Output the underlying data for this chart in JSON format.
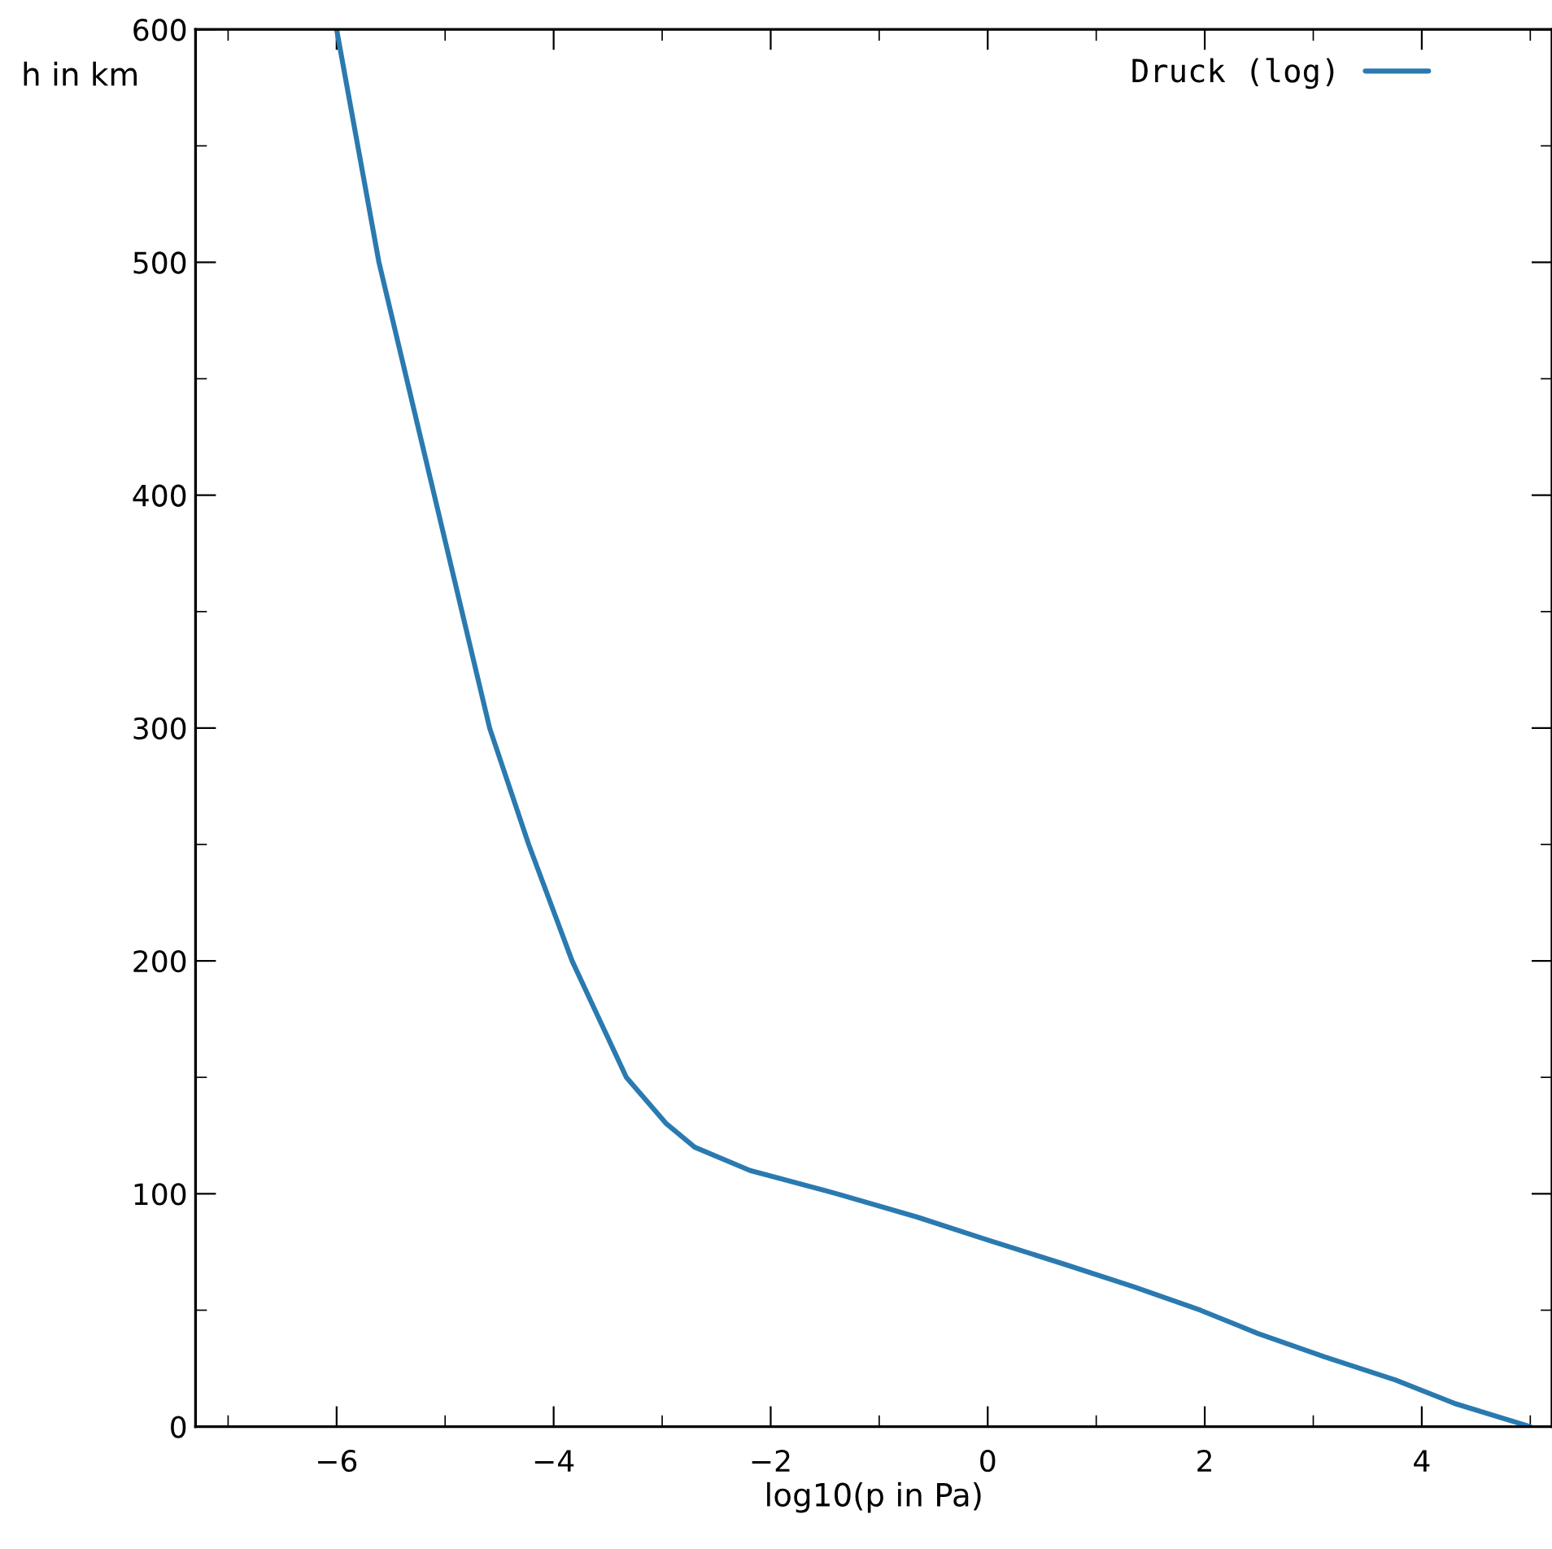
{
  "chart_data": {
    "type": "line",
    "xlabel": "log10(p in Pa)",
    "ylabel": "h in km",
    "xlim": [
      -7.3,
      5.2
    ],
    "xticks": [
      {
        "value": -6,
        "label": "−6"
      },
      {
        "value": -4,
        "label": "−4"
      },
      {
        "value": -2,
        "label": "−2"
      },
      0,
      2,
      4
    ],
    "ylim": [
      0,
      600
    ],
    "yticks": [
      0,
      100,
      200,
      300,
      400,
      500,
      600
    ],
    "grid": false,
    "legend": "top right",
    "line_style": "solid",
    "marker": "none",
    "series": [
      {
        "name": "Druck (log)",
        "color": "#2a7ab0",
        "x": [
          5.0,
          4.3,
          3.76,
          3.1,
          2.49,
          1.96,
          1.35,
          0.69,
          0.01,
          -0.65,
          -1.39,
          -2.19,
          -2.7,
          -2.96,
          -3.33,
          -3.58,
          -3.83,
          -4.23,
          -4.59,
          -5.1,
          -5.61,
          -6.0
        ],
        "values": [
          0,
          10,
          20,
          30,
          40,
          50,
          60,
          70,
          80,
          90,
          100,
          110,
          120,
          130,
          150,
          175,
          200,
          250,
          300,
          400,
          500,
          600
        ]
      }
    ]
  }
}
